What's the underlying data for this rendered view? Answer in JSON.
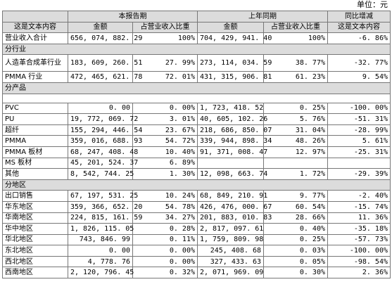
{
  "unit": "单位：元",
  "header": {
    "current_period": "本报告期",
    "prior_period": "上年同期",
    "yoy": "同比增减",
    "row_label": "这是文本内容",
    "amount": "金额",
    "ratio": "占营业收入比重",
    "yoy_sub": "这是文本内容"
  },
  "total": {
    "label": "营业收入合计",
    "cur_amt": "656, 074, 882. 29",
    "cur_ratio": "100%",
    "prev_amt": "704, 429, 941. 40",
    "prev_ratio": "100%",
    "yoy": "-6. 86%"
  },
  "sections": {
    "industry": "分行业",
    "product": "分产品",
    "region": "分地区"
  },
  "industry_rows": [
    {
      "label": "人造革合成革行业",
      "cur_amt": "183, 609, 260. 51",
      "cur_ratio": "27. 99%",
      "prev_amt": "273, 114, 034. 59",
      "prev_ratio": "38. 77%",
      "yoy": "-32. 77%"
    },
    {
      "label": "PMMA 行业",
      "cur_amt": "472, 465, 621. 78",
      "cur_ratio": "72. 01%",
      "prev_amt": "431, 315, 906. 81",
      "prev_ratio": "61. 23%",
      "yoy": "9. 54%"
    }
  ],
  "product_rows": [
    {
      "label": "PVC",
      "cur_amt": "0. 00",
      "cur_ratio": "0. 00%",
      "prev_amt": "1, 723, 418. 52",
      "prev_ratio": "0. 25%",
      "yoy": "-100. 00%"
    },
    {
      "label": "PU",
      "cur_amt": "19, 772, 069. 72",
      "cur_ratio": "3. 01%",
      "prev_amt": "40, 605, 102. 26",
      "prev_ratio": "5. 76%",
      "yoy": "-51. 31%"
    },
    {
      "label": "超纤",
      "cur_amt": "155, 294, 446. 54",
      "cur_ratio": "23. 67%",
      "prev_amt": "218, 686, 850. 07",
      "prev_ratio": "31. 04%",
      "yoy": "-28. 99%"
    },
    {
      "label": "PMMA",
      "cur_amt": "359, 016, 688. 93",
      "cur_ratio": "54. 72%",
      "prev_amt": "339, 944, 898. 34",
      "prev_ratio": "48. 26%",
      "yoy": "5. 61%"
    },
    {
      "label": "PMMA 板材",
      "cur_amt": "68, 247, 408. 48",
      "cur_ratio": "10. 40%",
      "prev_amt": "91, 371, 008. 47",
      "prev_ratio": "12. 97%",
      "yoy": "-25. 31%"
    },
    {
      "label": "MS 板材",
      "cur_amt": "45, 201, 524. 37",
      "cur_ratio": "6. 89%",
      "prev_amt": "",
      "prev_ratio": "",
      "yoy": ""
    },
    {
      "label": "其他",
      "cur_amt": "8, 542, 744. 25",
      "cur_ratio": "1. 30%",
      "prev_amt": "12, 098, 663. 74",
      "prev_ratio": "1. 72%",
      "yoy": "-29. 39%"
    }
  ],
  "region_rows": [
    {
      "label": "出口销售",
      "cur_amt": "67, 197, 531. 25",
      "cur_ratio": "10. 24%",
      "prev_amt": "68, 849, 210. 91",
      "prev_ratio": "9. 77%",
      "yoy": "-2. 40%"
    },
    {
      "label": "华东地区",
      "cur_amt": "359, 366, 652. 20",
      "cur_ratio": "54. 78%",
      "prev_amt": "426, 476, 000. 67",
      "prev_ratio": "60. 54%",
      "yoy": "-15. 74%"
    },
    {
      "label": "华南地区",
      "cur_amt": "224, 815, 161. 59",
      "cur_ratio": "34. 27%",
      "prev_amt": "201, 883, 010. 83",
      "prev_ratio": "28. 66%",
      "yoy": "11. 36%"
    },
    {
      "label": "华中地区",
      "cur_amt": "1, 826, 115. 05",
      "cur_ratio": "0. 28%",
      "prev_amt": "2, 817, 097. 61",
      "prev_ratio": "0. 40%",
      "yoy": "-35. 18%"
    },
    {
      "label": "华北地区",
      "cur_amt": "743, 846. 99",
      "cur_ratio": "0. 11%",
      "prev_amt": "1, 759, 809. 98",
      "prev_ratio": "0. 25%",
      "yoy": "-57. 73%"
    },
    {
      "label": "东北地区",
      "cur_amt": "0. 00",
      "cur_ratio": "0. 00%",
      "prev_amt": "245, 408. 68",
      "prev_ratio": "0. 03%",
      "yoy": "-100. 00%"
    },
    {
      "label": "西北地区",
      "cur_amt": "4, 778. 76",
      "cur_ratio": "0. 00%",
      "prev_amt": "327, 433. 63",
      "prev_ratio": "0. 05%",
      "yoy": "-98. 54%"
    },
    {
      "label": "西南地区",
      "cur_amt": "2, 120, 796. 45",
      "cur_ratio": "0. 32%",
      "prev_amt": "2, 071, 969. 09",
      "prev_ratio": "0. 30%",
      "yoy": "2. 36%"
    }
  ]
}
